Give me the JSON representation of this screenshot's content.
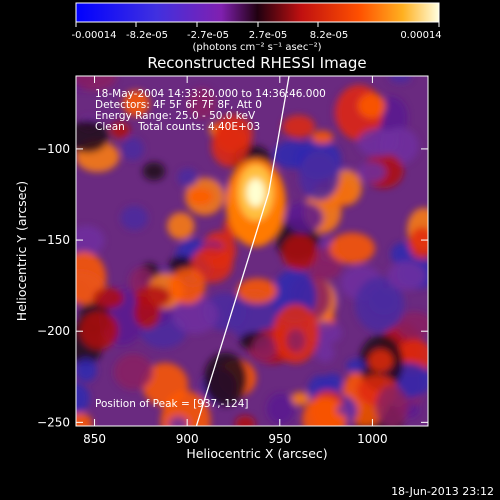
{
  "chart_data": {
    "type": "heatmap",
    "title": "Reconstructed RHESSI Image",
    "xlabel": "Heliocentric X (arcsec)",
    "ylabel": "Heliocentric Y (arcsec)",
    "xlim": [
      840,
      1030
    ],
    "ylim": [
      -252,
      -60
    ],
    "x_ticks": [
      "850",
      "900",
      "950",
      "1000"
    ],
    "y_ticks": [
      "-100",
      "-150",
      "-200",
      "-250"
    ],
    "colorbar": {
      "ticks": [
        "-0.00014",
        "-8.2e-05",
        "-2.7e-05",
        "2.7e-05",
        "8.2e-05",
        "0.00014"
      ],
      "unit_label": "(photons cm⁻² s⁻¹ asec⁻²)",
      "range": [
        -0.00014,
        0.00014
      ]
    },
    "info_lines": [
      "18-May-2004 14:33:20.000 to 14:36:46.000",
      "Detectors: 4F 5F 6F 7F 8F, Att 0",
      "Energy Range: 25.0 - 50.0 keV",
      "Clean    Total counts: 4.40E+03"
    ],
    "peak_text": "Position of Peak = [937,-124]",
    "peak": [
      937,
      -124
    ],
    "limb_line": [
      [
        905,
        -252
      ],
      [
        944,
        -124
      ],
      [
        955,
        -60
      ]
    ]
  },
  "footer": {
    "timestamp": "18-Jun-2013 23:12"
  }
}
